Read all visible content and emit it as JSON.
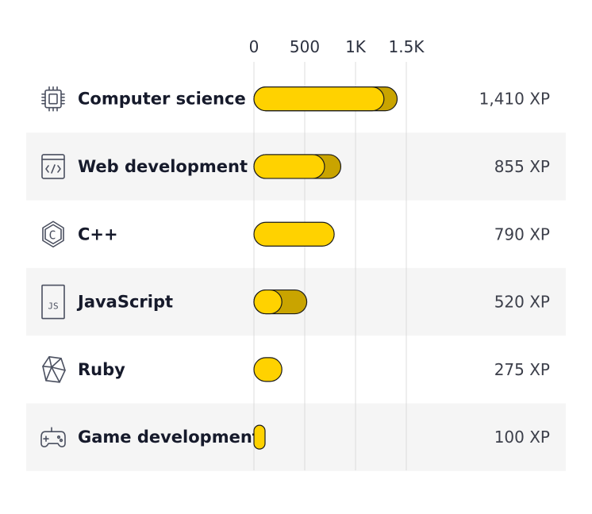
{
  "chart_data": {
    "type": "bar",
    "orientation": "horizontal",
    "title": "",
    "xlim": [
      0,
      1500
    ],
    "ticks": [
      {
        "value": 0,
        "label": "0"
      },
      {
        "value": 500,
        "label": "500"
      },
      {
        "value": 1000,
        "label": "1K"
      },
      {
        "value": 1500,
        "label": "1.5K"
      }
    ],
    "unit": "XP",
    "categories": [
      {
        "name": "Computer science",
        "value": 1410,
        "value_label": "1,410 XP",
        "recent": 130,
        "icon": "chip-icon"
      },
      {
        "name": "Web development",
        "value": 855,
        "value_label": "855 XP",
        "recent": 160,
        "icon": "code-window-icon"
      },
      {
        "name": "C++",
        "value": 790,
        "value_label": "790 XP",
        "recent": 0,
        "icon": "cpp-hexagon-icon"
      },
      {
        "name": "JavaScript",
        "value": 520,
        "value_label": "520 XP",
        "recent": 245,
        "icon": "js-file-icon"
      },
      {
        "name": "Ruby",
        "value": 275,
        "value_label": "275 XP",
        "recent": 0,
        "icon": "ruby-gem-icon"
      },
      {
        "name": "Game development",
        "value": 100,
        "value_label": "100 XP",
        "recent": 0,
        "icon": "gamepad-icon"
      }
    ],
    "colors": {
      "bar": "#ffd200",
      "bar_recent": "#c9a400",
      "row_alt": "#f5f5f5",
      "grid": "#dcdcdc"
    }
  }
}
